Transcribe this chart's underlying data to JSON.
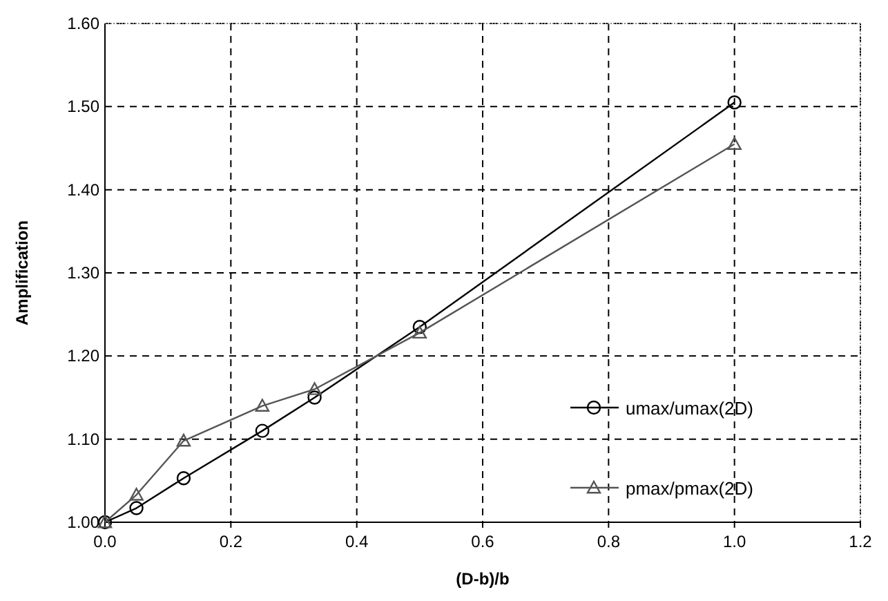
{
  "chart_data": {
    "type": "line",
    "xlabel": "(D-b)/b",
    "ylabel": "Amplification",
    "x": [
      0,
      0.05,
      0.125,
      0.25,
      0.333,
      0.5,
      1.0
    ],
    "series": [
      {
        "name": "umax/umax(2D)",
        "color": "#000000",
        "marker": "circle",
        "values": [
          1.0,
          1.017,
          1.053,
          1.11,
          1.15,
          1.235,
          1.505
        ]
      },
      {
        "name": "pmax/pmax(2D)",
        "color": "#555555",
        "marker": "triangle",
        "values": [
          1.0,
          1.033,
          1.098,
          1.14,
          1.16,
          1.228,
          1.455
        ]
      }
    ],
    "xlim": [
      0,
      1.2
    ],
    "xticks": [
      {
        "value": 0,
        "label": "0.0"
      },
      0.2,
      0.4,
      0.6,
      0.8,
      {
        "value": 1,
        "label": "1.0"
      },
      1.2
    ],
    "ylim": [
      1.0,
      1.6
    ],
    "yticks": [
      {
        "value": 1,
        "label": "1.00"
      },
      {
        "value": 1.1,
        "label": "1.10"
      },
      {
        "value": 1.2,
        "label": "1.20"
      },
      {
        "value": 1.3,
        "label": "1.30"
      },
      {
        "value": 1.4,
        "label": "1.40"
      },
      {
        "value": 1.5,
        "label": "1.50"
      },
      {
        "value": 1.6,
        "label": "1.60"
      }
    ],
    "grid": true,
    "legend": "right",
    "line_style": "solid"
  }
}
